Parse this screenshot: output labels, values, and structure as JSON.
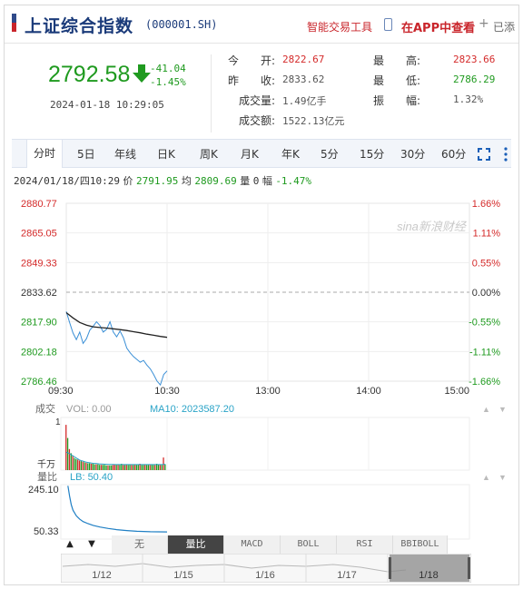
{
  "header": {
    "title": "上证综合指数",
    "code": "(000001.SH)",
    "smart_trade": "智能交易工具",
    "app_view": "在APP中查看",
    "added": "已添"
  },
  "quote": {
    "price": "2792.58",
    "change": "-41.04",
    "change_pct": "-1.45%",
    "time": "2024-01-18 10:29:05",
    "fields": {
      "open_label": "今　　开:",
      "open": "2822.67",
      "prev_label": "昨　　收:",
      "prev": "2833.62",
      "vol_label": "成交量:",
      "vol": "1.49亿手",
      "amt_label": "成交额:",
      "amt": "1522.13亿元",
      "high_label": "最　　高:",
      "high": "2823.66",
      "low_label": "最　　低:",
      "low": "2786.29",
      "amp_label": "振　　幅:",
      "amp": "1.32%"
    }
  },
  "tabs": [
    "分时",
    "5日",
    "年线",
    "日K",
    "周K",
    "月K",
    "年K",
    "5分",
    "15分",
    "30分",
    "60分"
  ],
  "active_tab": "分时",
  "infoline": {
    "datetime": "2024/01/18/四10:29",
    "price_label": "价",
    "price": "2791.95",
    "avg_label": "均",
    "avg": "2809.69",
    "vol_label": "量",
    "vol": "0",
    "amp_label": "幅",
    "amp": "-1.47%"
  },
  "chart_data": [
    {
      "type": "line",
      "title": "",
      "y_left_ticks": [
        "2880.77",
        "2865.05",
        "2849.33",
        "2833.62",
        "2817.90",
        "2802.18",
        "2786.46"
      ],
      "y_right_ticks": [
        "1.66%",
        "1.11%",
        "0.55%",
        "0.00%",
        "-0.55%",
        "-1.11%",
        "-1.66%"
      ],
      "x_ticks": [
        "09:30",
        "10:30",
        "13:00",
        "14:00",
        "15:00"
      ],
      "ylim": [
        2786.46,
        2880.77
      ],
      "prev_close": 2833.62,
      "watermark": "sina新浪财经",
      "series": [
        {
          "name": "价",
          "color": "#3a8fd6",
          "x": [
            0,
            2,
            4,
            6,
            8,
            10,
            12,
            14,
            16,
            18,
            20,
            22,
            24,
            26,
            28,
            30,
            32,
            34,
            36,
            38,
            40,
            42,
            44,
            46,
            48,
            50,
            52,
            54,
            56,
            58,
            60
          ],
          "y": [
            2823.4,
            2817.5,
            2812.0,
            2808.5,
            2812.5,
            2806.5,
            2809.0,
            2813.5,
            2815.5,
            2818.0,
            2816.0,
            2812.5,
            2814.0,
            2818.0,
            2812.5,
            2810.0,
            2813.0,
            2809.5,
            2804.0,
            2801.5,
            2799.5,
            2798.0,
            2796.5,
            2797.5,
            2795.0,
            2793.0,
            2790.0,
            2786.5,
            2784.5,
            2790.0,
            2791.9
          ]
        },
        {
          "name": "均",
          "color": "#222222",
          "x": [
            0,
            4,
            8,
            12,
            16,
            20,
            24,
            28,
            32,
            36,
            40,
            44,
            48,
            52,
            56,
            60
          ],
          "y": [
            2822.8,
            2820.0,
            2817.6,
            2816.2,
            2815.3,
            2814.9,
            2814.6,
            2814.2,
            2813.8,
            2813.3,
            2812.7,
            2812.1,
            2811.4,
            2810.8,
            2810.2,
            2809.7
          ]
        }
      ]
    },
    {
      "type": "bar",
      "title": "成交",
      "label_vol": "VOL: 0.00",
      "label_ma": "MA10: 2023587.20",
      "y_label_top": "1",
      "y_label_unit": "千万",
      "values": [
        8.6,
        6.1,
        4.0,
        3.2,
        2.7,
        2.3,
        2.1,
        2.0,
        1.8,
        1.7,
        1.6,
        1.5,
        1.4,
        1.3,
        1.3,
        1.2,
        1.2,
        1.1,
        1.1,
        1.1,
        1.0,
        1.0,
        1.0,
        1.0,
        0.9,
        0.9,
        0.9,
        0.9,
        1.0,
        1.1,
        1.0,
        1.1,
        1.0,
        1.2,
        1.0,
        1.0,
        1.1,
        1.0,
        1.1,
        1.0,
        1.0,
        1.1,
        1.0,
        1.1,
        1.2,
        1.0,
        1.0,
        1.1,
        1.0,
        1.0,
        1.0,
        1.1,
        1.0,
        1.0,
        1.2,
        1.1,
        1.0,
        1.0,
        2.4,
        1.1
      ],
      "up": [
        1,
        0,
        1,
        0,
        1,
        0,
        0,
        1,
        1,
        0,
        1,
        0,
        1,
        0,
        0,
        1,
        0,
        0,
        1,
        0,
        0,
        1,
        0,
        0,
        0,
        1,
        0,
        0,
        1,
        1,
        0,
        1,
        0,
        0,
        1,
        0,
        1,
        0,
        0,
        1,
        0,
        1,
        0,
        0,
        1,
        0,
        0,
        1,
        0,
        0,
        1,
        0,
        0,
        1,
        0,
        0,
        1,
        0,
        1,
        0
      ],
      "ma": [
        3.4,
        3.3,
        3.1,
        2.9,
        2.7,
        2.5,
        2.3,
        2.1,
        1.9,
        1.8,
        1.7,
        1.6,
        1.5,
        1.45,
        1.4,
        1.35,
        1.3,
        1.27,
        1.24,
        1.2,
        1.18,
        1.16,
        1.14,
        1.12,
        1.1,
        1.09,
        1.08,
        1.07,
        1.07,
        1.06,
        1.06,
        1.06,
        1.06,
        1.06,
        1.06,
        1.06,
        1.06,
        1.06,
        1.06,
        1.06,
        1.05,
        1.05,
        1.05,
        1.05,
        1.05,
        1.05,
        1.05,
        1.05,
        1.05,
        1.05,
        1.05,
        1.05,
        1.05,
        1.05,
        1.05,
        1.06,
        1.06,
        1.06,
        1.1,
        1.1
      ],
      "ylim": [
        0,
        10
      ]
    },
    {
      "type": "line",
      "title": "量比",
      "label": "LB: 50.40",
      "y_ticks": [
        "245.10",
        "50.33"
      ],
      "ylim": [
        20,
        250
      ],
      "x": [
        1,
        2,
        3,
        4,
        6,
        8,
        10,
        13,
        16,
        20,
        25,
        30,
        36,
        42,
        50,
        60
      ],
      "y": [
        245.1,
        200,
        165,
        142,
        118,
        104,
        94,
        85,
        78,
        71,
        65,
        60,
        56,
        53,
        51,
        50.4
      ]
    }
  ],
  "indicators": [
    "无",
    "量比",
    "MACD",
    "BOLL",
    "RSI",
    "BBIBOLL"
  ],
  "active_indicator": "量比",
  "timeline": [
    "1/12",
    "1/15",
    "1/16",
    "1/17",
    "1/18"
  ]
}
